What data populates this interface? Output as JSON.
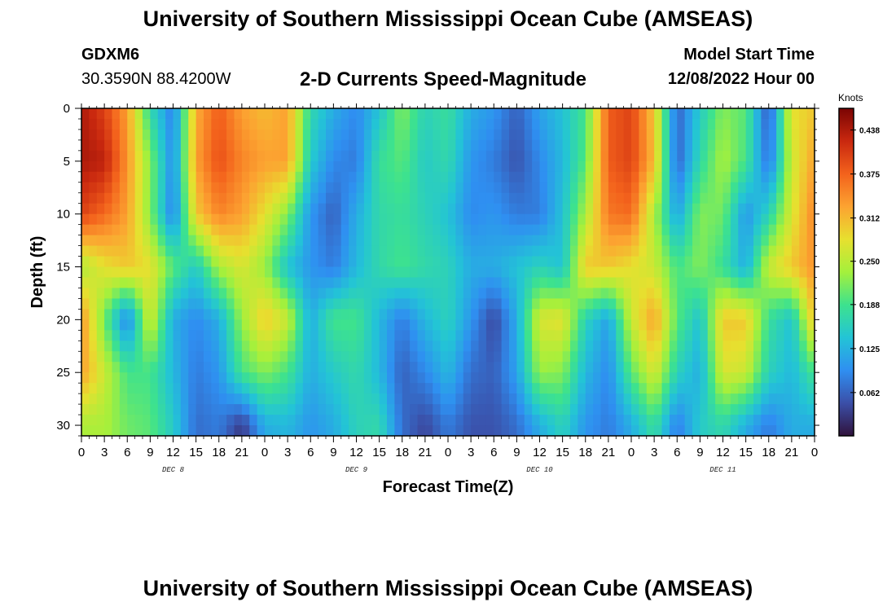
{
  "header": {
    "title": "University of Southern Mississippi Ocean Cube (AMSEAS)",
    "title_repeat": "University of Southern Mississippi Ocean Cube (AMSEAS)",
    "station": "GDXM6",
    "coords": "30.3590N  88.4200W",
    "subtitle": "2-D Currents Speed-Magnitude",
    "start_label": "Model Start Time",
    "start_value": "12/08/2022 Hour 00"
  },
  "colors": {
    "scale": [
      "#30123b",
      "#3b4fa8",
      "#2f8ff1",
      "#23c4d6",
      "#3de28e",
      "#a4f03c",
      "#e7e02f",
      "#fca331",
      "#f3621c",
      "#c9280f",
      "#7a0403"
    ]
  },
  "chart_data": {
    "type": "heatmap",
    "title": "2-D Currents Speed-Magnitude",
    "xlabel": "Forecast Time(Z)",
    "ylabel": "Depth (ft)",
    "x_hours_range": [
      0,
      96
    ],
    "x_tick_labels": [
      "0",
      "3",
      "6",
      "9",
      "12",
      "15",
      "18",
      "21",
      "0",
      "3",
      "6",
      "9",
      "12",
      "15",
      "18",
      "21",
      "0",
      "3",
      "6",
      "9",
      "12",
      "15",
      "18",
      "21",
      "0",
      "3",
      "6",
      "9",
      "12",
      "15",
      "18",
      "21",
      "0"
    ],
    "date_labels": [
      "DEC 8",
      "DEC 9",
      "DEC 10",
      "DEC 11"
    ],
    "y_range": [
      0,
      31
    ],
    "y_ticks": [
      0,
      5,
      10,
      15,
      20,
      25,
      30
    ],
    "y_tick_labels": [
      "0",
      "5",
      "10",
      "15",
      "20",
      "25",
      "30"
    ],
    "colorbar": {
      "units": "Knots",
      "range": [
        0,
        0.469
      ],
      "ticks": [
        0.062,
        0.125,
        0.188,
        0.25,
        0.312,
        0.375,
        0.438
      ],
      "tick_labels": [
        "0.062",
        "0.125",
        "0.188",
        "0.250",
        "0.312",
        "0.375",
        "0.438"
      ]
    },
    "grid": {
      "hours": [
        0,
        3,
        6,
        9,
        12,
        15,
        18,
        21,
        24,
        27,
        30,
        33,
        36,
        39,
        42,
        45,
        48,
        51,
        54,
        57,
        60,
        63,
        66,
        69,
        72,
        75,
        78,
        81,
        84,
        87,
        90,
        93,
        96
      ],
      "depths_ft": [
        0,
        5,
        10,
        15,
        20,
        25,
        30
      ],
      "speed_knots": [
        [
          0.44,
          0.4,
          0.33,
          0.17,
          0.08,
          0.32,
          0.38,
          0.33,
          0.31,
          0.33,
          0.17,
          0.12,
          0.09,
          0.14,
          0.22,
          0.16,
          0.18,
          0.12,
          0.1,
          0.06,
          0.11,
          0.14,
          0.19,
          0.38,
          0.4,
          0.3,
          0.06,
          0.15,
          0.22,
          0.2,
          0.05,
          0.28,
          0.3
        ],
        [
          0.44,
          0.43,
          0.34,
          0.22,
          0.09,
          0.33,
          0.39,
          0.35,
          0.33,
          0.33,
          0.15,
          0.09,
          0.08,
          0.18,
          0.2,
          0.15,
          0.17,
          0.1,
          0.08,
          0.05,
          0.09,
          0.13,
          0.2,
          0.38,
          0.4,
          0.31,
          0.06,
          0.17,
          0.24,
          0.19,
          0.07,
          0.26,
          0.33
        ],
        [
          0.4,
          0.37,
          0.33,
          0.22,
          0.08,
          0.3,
          0.35,
          0.33,
          0.28,
          0.22,
          0.1,
          0.06,
          0.12,
          0.17,
          0.18,
          0.16,
          0.14,
          0.09,
          0.1,
          0.08,
          0.08,
          0.14,
          0.24,
          0.36,
          0.37,
          0.24,
          0.11,
          0.22,
          0.21,
          0.1,
          0.16,
          0.27,
          0.35
        ],
        [
          0.24,
          0.28,
          0.3,
          0.28,
          0.2,
          0.15,
          0.24,
          0.27,
          0.23,
          0.14,
          0.1,
          0.08,
          0.13,
          0.17,
          0.19,
          0.17,
          0.16,
          0.12,
          0.12,
          0.14,
          0.16,
          0.14,
          0.3,
          0.3,
          0.28,
          0.26,
          0.19,
          0.22,
          0.18,
          0.12,
          0.26,
          0.3,
          0.34
        ],
        [
          0.34,
          0.21,
          0.08,
          0.27,
          0.12,
          0.09,
          0.12,
          0.23,
          0.3,
          0.26,
          0.12,
          0.19,
          0.19,
          0.13,
          0.08,
          0.13,
          0.16,
          0.1,
          0.04,
          0.12,
          0.27,
          0.28,
          0.16,
          0.11,
          0.26,
          0.33,
          0.2,
          0.14,
          0.3,
          0.3,
          0.18,
          0.14,
          0.31
        ],
        [
          0.33,
          0.26,
          0.19,
          0.19,
          0.13,
          0.08,
          0.1,
          0.19,
          0.22,
          0.19,
          0.12,
          0.15,
          0.17,
          0.13,
          0.06,
          0.09,
          0.13,
          0.07,
          0.06,
          0.11,
          0.23,
          0.22,
          0.13,
          0.09,
          0.2,
          0.27,
          0.16,
          0.12,
          0.27,
          0.26,
          0.16,
          0.13,
          0.19
        ],
        [
          0.24,
          0.24,
          0.21,
          0.2,
          0.15,
          0.07,
          0.08,
          0.03,
          0.12,
          0.13,
          0.1,
          0.12,
          0.16,
          0.17,
          0.07,
          0.04,
          0.08,
          0.05,
          0.05,
          0.07,
          0.12,
          0.16,
          0.1,
          0.08,
          0.12,
          0.18,
          0.08,
          0.15,
          0.17,
          0.12,
          0.08,
          0.12,
          0.12
        ]
      ]
    }
  }
}
